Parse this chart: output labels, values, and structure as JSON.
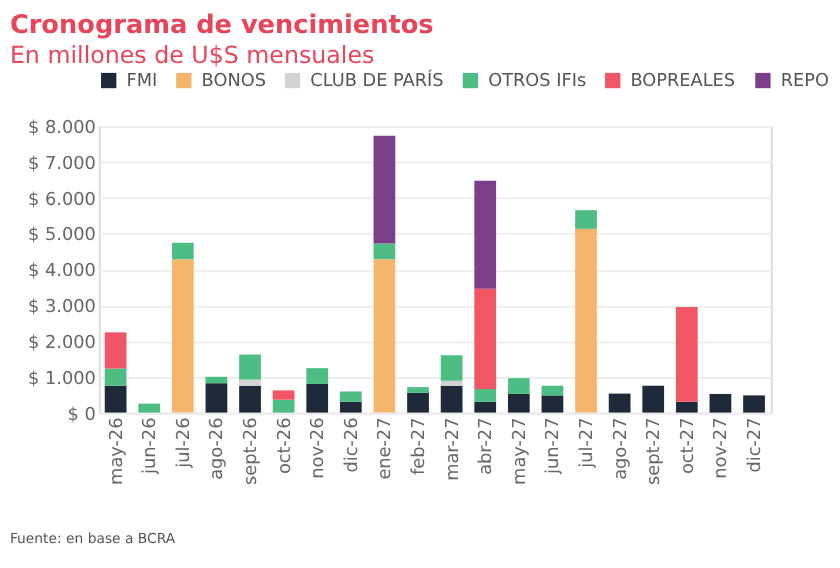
{
  "chart_data": {
    "type": "bar",
    "stacked": true,
    "title": "Cronograma de vencimientos",
    "subtitle": "En millones de U$S mensuales",
    "categories": [
      "may-26",
      "jun-26",
      "jul-26",
      "ago-26",
      "sept-26",
      "oct-26",
      "nov-26",
      "dic-26",
      "ene-27",
      "feb-27",
      "mar-27",
      "abr-27",
      "may-27",
      "jun-27",
      "jul-27",
      "ago-27",
      "sept-27",
      "oct-27",
      "nov-27",
      "dic-27"
    ],
    "series": [
      {
        "name": "FMI",
        "color": "#1e2a3a",
        "values": [
          750,
          null,
          null,
          820,
          750,
          null,
          800,
          300,
          null,
          550,
          750,
          300,
          520,
          480,
          null,
          530,
          750,
          300,
          520,
          480
        ]
      },
      {
        "name": "BONOS",
        "color": "#f5b66b",
        "values": [
          null,
          null,
          4280,
          null,
          null,
          null,
          null,
          null,
          4280,
          null,
          null,
          null,
          null,
          null,
          5130,
          null,
          null,
          null,
          null,
          null
        ]
      },
      {
        "name": "CLUB DE PARÍS",
        "color": "#d3d3d3",
        "values": [
          null,
          null,
          null,
          null,
          170,
          null,
          null,
          null,
          null,
          null,
          140,
          null,
          null,
          null,
          null,
          null,
          null,
          null,
          null,
          null
        ]
      },
      {
        "name": "OTROS IFIs",
        "color": "#4dbd84",
        "values": [
          480,
          250,
          460,
          180,
          700,
          360,
          440,
          290,
          440,
          160,
          710,
          360,
          440,
          270,
          520,
          null,
          null,
          null,
          null,
          null
        ]
      },
      {
        "name": "BOPREALES",
        "color": "#f25565",
        "values": [
          1010,
          null,
          null,
          null,
          null,
          260,
          null,
          null,
          null,
          null,
          null,
          2800,
          null,
          null,
          null,
          null,
          null,
          2650,
          null,
          null
        ]
      },
      {
        "name": "REPO",
        "color": "#7b3f8a",
        "values": [
          null,
          null,
          null,
          null,
          null,
          null,
          null,
          null,
          3010,
          null,
          null,
          3010,
          null,
          null,
          null,
          null,
          null,
          null,
          null,
          null
        ]
      }
    ],
    "ylim": [
      0,
      8000
    ],
    "yticks": [
      {
        "value": 0,
        "label": "$ 0"
      },
      {
        "value": 1000,
        "label": "$ 1.000"
      },
      {
        "value": 2000,
        "label": "$ 2.000"
      },
      {
        "value": 3000,
        "label": "$ 3.000"
      },
      {
        "value": 4000,
        "label": "$ 4.000"
      },
      {
        "value": 5000,
        "label": "$ 5.000"
      },
      {
        "value": 6000,
        "label": "$ 6.000"
      },
      {
        "value": 7000,
        "label": "$ 7.000"
      },
      {
        "value": 8000,
        "label": "$ 8.000"
      }
    ],
    "grid": "y",
    "legend": "top",
    "annotations": [
      "Fuente: en base a BCRA"
    ]
  }
}
